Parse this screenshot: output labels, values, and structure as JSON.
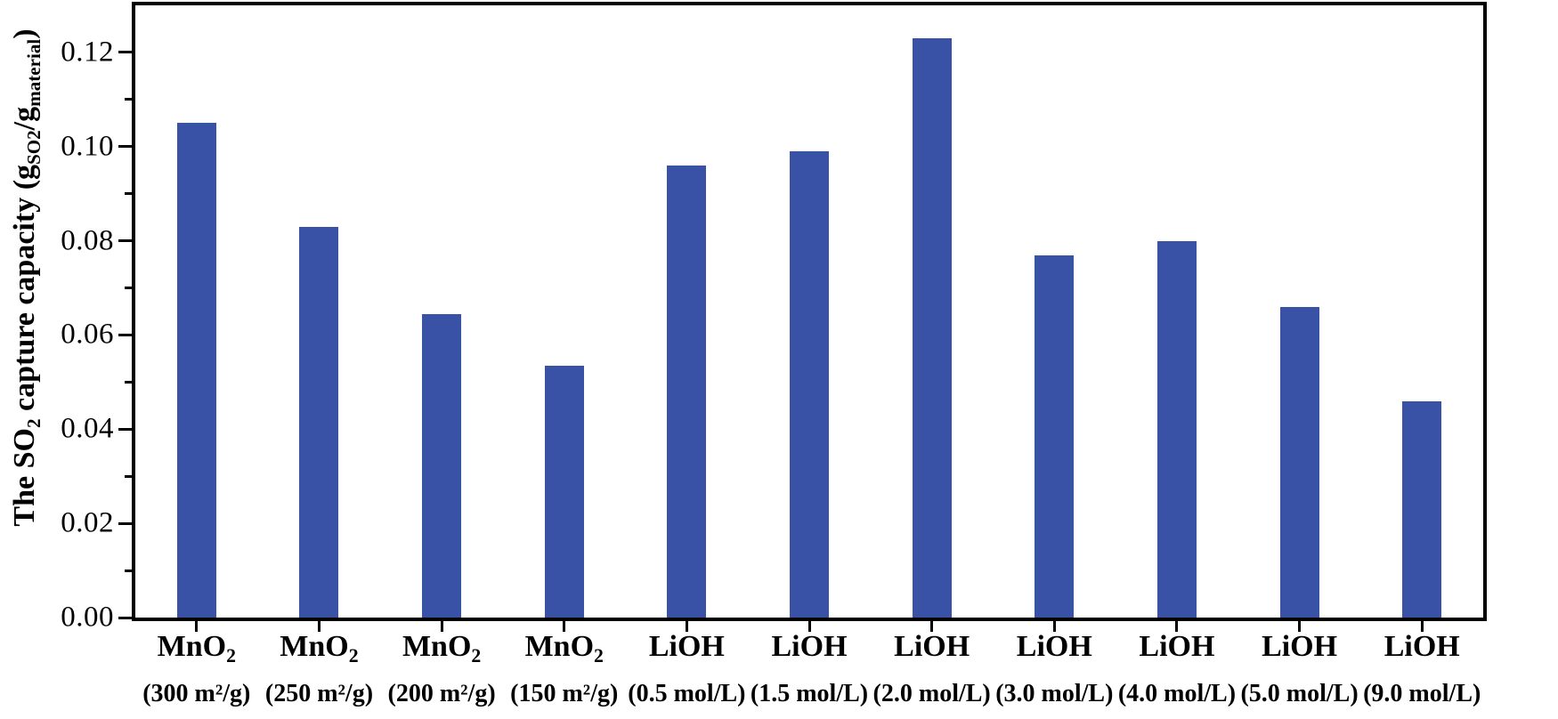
{
  "chart_data": {
    "type": "bar",
    "title": "",
    "ylabel": {
      "p1": "The SO",
      "p1_sub": "2",
      "p2": " capture capacity (g",
      "p2_sub": "SO2",
      "p3": "/g",
      "p3_sub": "material",
      "p4": ")"
    },
    "categories": [
      {
        "line1": "MnO",
        "line1_sub": "2",
        "line2": "(300 m²/g)"
      },
      {
        "line1": "MnO",
        "line1_sub": "2",
        "line2": "(250 m²/g)"
      },
      {
        "line1": "MnO",
        "line1_sub": "2",
        "line2": "(200 m²/g)"
      },
      {
        "line1": "MnO",
        "line1_sub": "2",
        "line2": "(150 m²/g)"
      },
      {
        "line1": "LiOH",
        "line1_sub": "",
        "line2": "(0.5 mol/L)"
      },
      {
        "line1": "LiOH",
        "line1_sub": "",
        "line2": "(1.5 mol/L)"
      },
      {
        "line1": "LiOH",
        "line1_sub": "",
        "line2": "(2.0 mol/L)"
      },
      {
        "line1": "LiOH",
        "line1_sub": "",
        "line2": "(3.0 mol/L)"
      },
      {
        "line1": "LiOH",
        "line1_sub": "",
        "line2": "(4.0 mol/L)"
      },
      {
        "line1": "LiOH",
        "line1_sub": "",
        "line2": "(5.0 mol/L)"
      },
      {
        "line1": "LiOH",
        "line1_sub": "",
        "line2": "(9.0 mol/L)"
      }
    ],
    "values": [
      0.105,
      0.083,
      0.0645,
      0.0535,
      0.096,
      0.099,
      0.123,
      0.077,
      0.08,
      0.066,
      0.046
    ],
    "ylim": [
      0,
      0.13
    ],
    "y_major_ticks": [
      {
        "value": 0.0,
        "label": "0.00"
      },
      {
        "value": 0.02,
        "label": "0.02"
      },
      {
        "value": 0.04,
        "label": "0.04"
      },
      {
        "value": 0.06,
        "label": "0.06"
      },
      {
        "value": 0.08,
        "label": "0.08"
      },
      {
        "value": 0.1,
        "label": "0.10"
      },
      {
        "value": 0.12,
        "label": "0.12"
      }
    ],
    "y_minor_ticks": [
      0.01,
      0.03,
      0.05,
      0.07,
      0.09,
      0.11
    ],
    "bar_color": "#3A52A6",
    "axis_color": "#000000",
    "grid": "off",
    "legend": "none"
  }
}
